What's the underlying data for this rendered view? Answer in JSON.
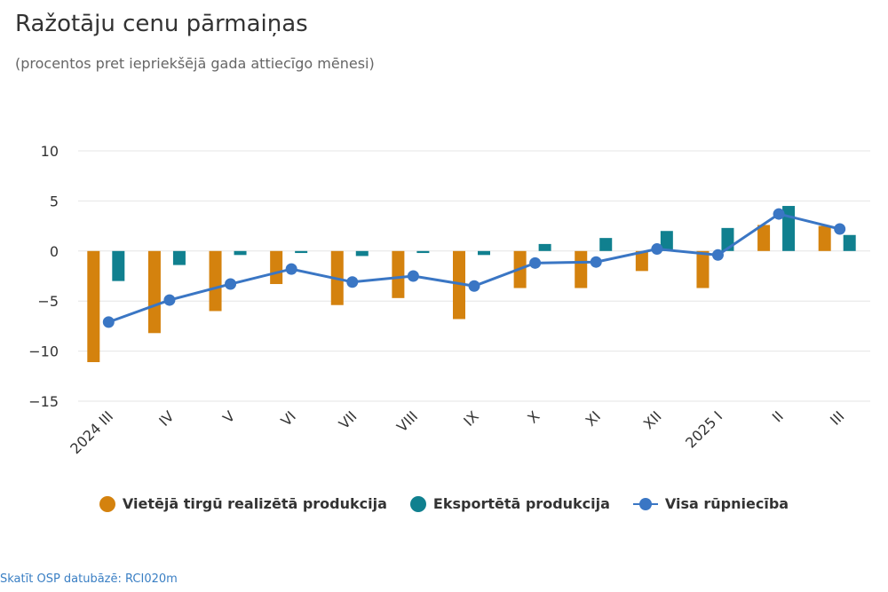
{
  "header": {
    "title": "Ražotāju cenu pārmaiņas",
    "subtitle": "(procentos pret iepriekšējā gada attiecīgo mēnesi)"
  },
  "footer": {
    "link_text": "Skatīt OSP datubāzē: RCI020m"
  },
  "colors": {
    "domestic": "#d4820e",
    "export": "#10808f",
    "total": "#3a76c4",
    "grid": "#e6e6e6",
    "axis_text": "#333333"
  },
  "chart_data": {
    "type": "bar",
    "title": "Ražotāju cenu pārmaiņas",
    "subtitle": "(procentos pret iepriekšējā gada attiecīgo mēnesi)",
    "categories": [
      "2024 III",
      "IV",
      "V",
      "VI",
      "VII",
      "VIII",
      "IX",
      "X",
      "XI",
      "XII",
      "2025 I",
      "II",
      "III"
    ],
    "y_ticks": [
      "10",
      "5",
      "0",
      "−5",
      "−10",
      "−15"
    ],
    "ylim": [
      -15,
      10
    ],
    "grid": true,
    "legend_position": "bottom",
    "series": [
      {
        "name": "Vietējā tirgū realizētā produkcija",
        "kind": "bar",
        "values": [
          -11.1,
          -8.2,
          -6.0,
          -3.3,
          -5.4,
          -4.7,
          -6.8,
          -3.7,
          -3.7,
          -2.0,
          -3.7,
          2.6,
          2.5
        ]
      },
      {
        "name": "Eksportētā produkcija",
        "kind": "bar",
        "values": [
          -3.0,
          -1.4,
          -0.4,
          -0.2,
          -0.5,
          -0.2,
          -0.4,
          0.7,
          1.3,
          2.0,
          2.3,
          4.5,
          1.6
        ]
      },
      {
        "name": "Visa rūpniecība",
        "kind": "line",
        "values": [
          -7.1,
          -4.9,
          -3.3,
          -1.8,
          -3.1,
          -2.5,
          -3.5,
          -1.2,
          -1.1,
          0.2,
          -0.4,
          3.7,
          2.2
        ]
      }
    ]
  }
}
